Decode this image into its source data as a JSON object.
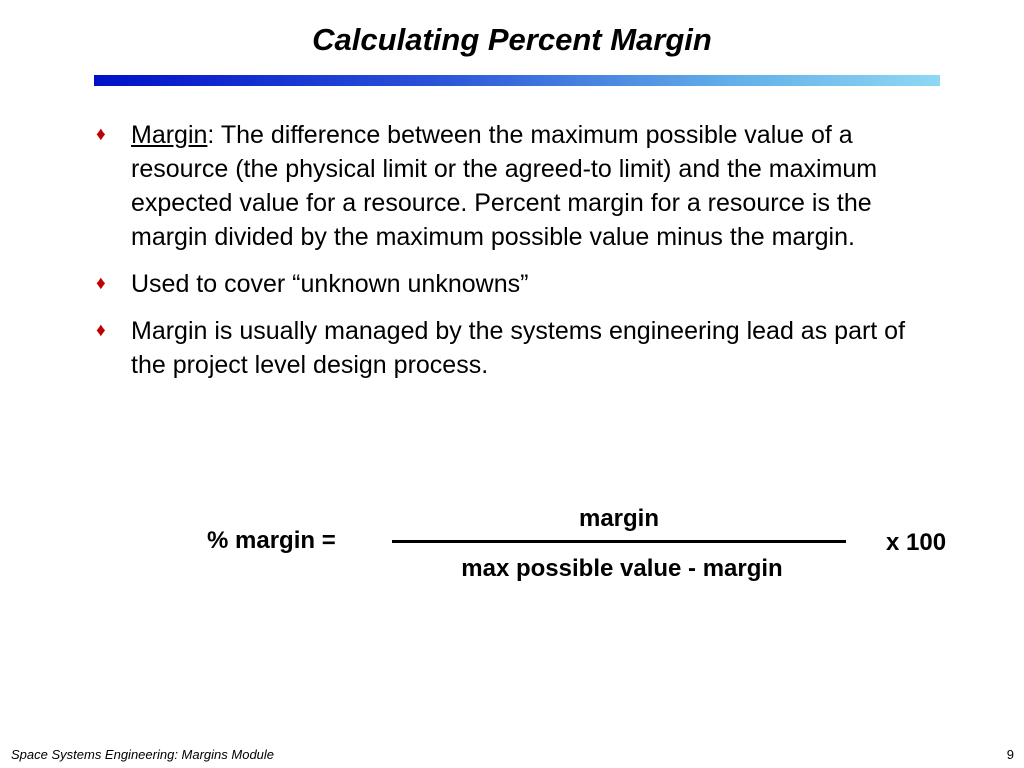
{
  "slide": {
    "title": "Calculating Percent Margin",
    "accent_color": "#c00000",
    "bullets": [
      {
        "term": "Margin",
        "text": ": The difference between the maximum possible value of a resource (the physical limit or the agreed-to limit) and the maximum expected value for a resource. Percent margin for a resource is the margin divided by the maximum possible value minus the margin."
      },
      {
        "text": "Used to cover “unknown unknowns”"
      },
      {
        "text": "Margin is usually managed by the systems engineering lead as part of the project level design process."
      }
    ],
    "bullet_icon": "diamond-icon",
    "formula": {
      "lhs": "% margin =",
      "numerator": "margin",
      "denominator": "max possible value - margin",
      "rhs": "x 100"
    }
  },
  "footer": {
    "module_label": "Space Systems Engineering: Margins Module",
    "page_number": "9"
  }
}
